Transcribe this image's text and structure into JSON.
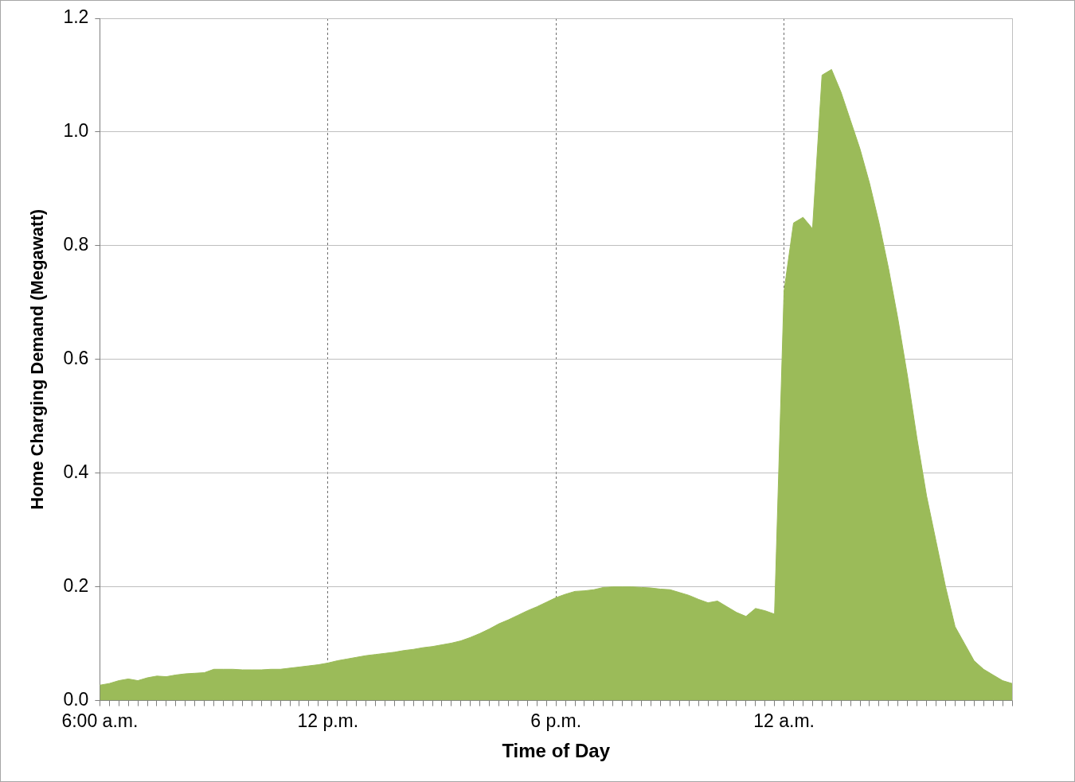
{
  "chart_data": {
    "type": "area",
    "x_label": "Time of Day",
    "y_label": "Home Charging Demand (Megawatt)",
    "color": "#9bbb59",
    "grid": true,
    "categories": [
      "6:00 a.m.",
      null,
      null,
      null,
      null,
      null,
      null,
      null,
      null,
      null,
      null,
      null,
      null,
      null,
      null,
      null,
      null,
      null,
      null,
      null,
      null,
      null,
      null,
      null,
      "12 p.m.",
      null,
      null,
      null,
      null,
      null,
      null,
      null,
      null,
      null,
      null,
      null,
      null,
      null,
      null,
      null,
      null,
      null,
      null,
      null,
      null,
      null,
      null,
      null,
      "6 p.m.",
      null,
      null,
      null,
      null,
      null,
      null,
      null,
      null,
      null,
      null,
      null,
      null,
      null,
      null,
      null,
      null,
      null,
      null,
      null,
      null,
      null,
      null,
      null,
      "12 a.m.",
      null,
      null,
      null,
      null,
      null,
      null,
      null,
      null,
      null,
      null,
      null,
      null,
      null,
      null,
      null,
      null,
      null,
      null,
      null,
      null,
      null,
      null,
      null,
      null
    ],
    "values": [
      0.027,
      0.03,
      0.035,
      0.038,
      0.035,
      0.04,
      0.043,
      0.042,
      0.045,
      0.047,
      0.048,
      0.049,
      0.055,
      0.055,
      0.055,
      0.054,
      0.054,
      0.054,
      0.055,
      0.055,
      0.057,
      0.059,
      0.061,
      0.063,
      0.066,
      0.07,
      0.073,
      0.076,
      0.079,
      0.081,
      0.083,
      0.085,
      0.088,
      0.09,
      0.093,
      0.095,
      0.098,
      0.101,
      0.105,
      0.111,
      0.118,
      0.126,
      0.135,
      0.142,
      0.15,
      0.158,
      0.165,
      0.173,
      0.181,
      0.187,
      0.192,
      0.193,
      0.195,
      0.199,
      0.2,
      0.2,
      0.2,
      0.199,
      0.198,
      0.196,
      0.195,
      0.19,
      0.185,
      0.178,
      0.172,
      0.175,
      0.165,
      0.155,
      0.148,
      0.162,
      0.158,
      0.152,
      0.72,
      0.84,
      0.85,
      0.83,
      1.1,
      1.11,
      1.07,
      1.02,
      0.97,
      0.91,
      0.84,
      0.76,
      0.67,
      0.57,
      0.46,
      0.36,
      0.28,
      0.2,
      0.13,
      0.1,
      0.07,
      0.055,
      0.045,
      0.035,
      0.03
    ],
    "ylim": [
      0,
      1.2
    ],
    "yticks": [
      {
        "value": 0,
        "label": "0.0"
      },
      0.2,
      0.4,
      0.6,
      0.8,
      {
        "value": 1,
        "label": "1.0"
      },
      1.2
    ]
  }
}
